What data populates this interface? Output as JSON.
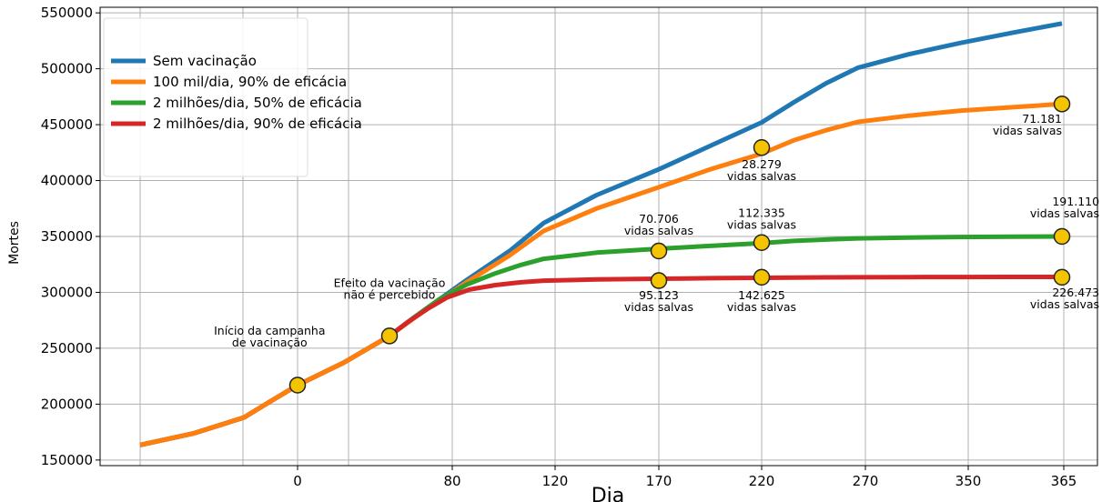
{
  "chart_data": {
    "type": "line",
    "title": "",
    "xlabel": "Dia",
    "ylabel": "Mortes",
    "ylim": [
      145000,
      555000
    ],
    "y_ticks": [
      150000,
      200000,
      250000,
      300000,
      350000,
      400000,
      450000,
      500000,
      550000
    ],
    "x_ticks": [
      "0",
      "80",
      "120",
      "170",
      "220",
      "270",
      "350",
      "365"
    ],
    "grid": true,
    "legend": "top-left",
    "series": [
      {
        "name": "Sem vacinação",
        "color": "#1f77b4",
        "points": [
          [
            -25,
            163500
          ],
          [
            -12,
            174000
          ],
          [
            0,
            188000
          ],
          [
            12,
            202000
          ],
          [
            25,
            217000
          ],
          [
            40,
            237000
          ],
          [
            55,
            261000
          ],
          [
            70,
            286000
          ],
          [
            85,
            311000
          ],
          [
            100,
            337000
          ],
          [
            115,
            362000
          ],
          [
            130,
            387000
          ],
          [
            145,
            410000
          ],
          [
            160,
            431000
          ],
          [
            175,
            452000
          ],
          [
            190,
            470000
          ],
          [
            205,
            487000
          ],
          [
            220,
            501000
          ],
          [
            235,
            513000
          ],
          [
            250,
            523000
          ],
          [
            265,
            532000
          ],
          [
            280,
            540500
          ]
        ]
      },
      {
        "name": "100 mil/dia, 90% de eficácia",
        "color": "#ff7f0e",
        "points": [
          [
            -25,
            163500
          ],
          [
            -12,
            174000
          ],
          [
            0,
            188000
          ],
          [
            12,
            202000
          ],
          [
            25,
            217000
          ],
          [
            40,
            237000
          ],
          [
            55,
            261000
          ],
          [
            70,
            285500
          ],
          [
            85,
            309000
          ],
          [
            100,
            333000
          ],
          [
            115,
            355000
          ],
          [
            130,
            375000
          ],
          [
            145,
            394000
          ],
          [
            160,
            410000
          ],
          [
            175,
            424000
          ],
          [
            190,
            436000
          ],
          [
            205,
            445000
          ],
          [
            220,
            452500
          ],
          [
            235,
            458000
          ],
          [
            250,
            462500
          ],
          [
            265,
            465500
          ],
          [
            280,
            468500
          ]
        ]
      },
      {
        "name": "2 milhões/dia, 50% de eficácia",
        "color": "#2ca02c",
        "points": [
          [
            -25,
            163500
          ],
          [
            -12,
            174000
          ],
          [
            0,
            188000
          ],
          [
            12,
            202000
          ],
          [
            25,
            217000
          ],
          [
            40,
            237000
          ],
          [
            55,
            261000
          ],
          [
            65,
            278000
          ],
          [
            75,
            294000
          ],
          [
            85,
            307000
          ],
          [
            95,
            317000
          ],
          [
            105,
            324500
          ],
          [
            115,
            330000
          ],
          [
            130,
            335500
          ],
          [
            145,
            339000
          ],
          [
            160,
            341500
          ],
          [
            175,
            344000
          ],
          [
            190,
            346000
          ],
          [
            205,
            347200
          ],
          [
            220,
            348300
          ],
          [
            235,
            349000
          ],
          [
            250,
            349500
          ],
          [
            265,
            349800
          ],
          [
            280,
            350000
          ]
        ]
      },
      {
        "name": "2 milhões/dia, 90% de eficácia",
        "color": "#d62728",
        "points": [
          [
            -25,
            163500
          ],
          [
            -12,
            174000
          ],
          [
            0,
            188000
          ],
          [
            12,
            202000
          ],
          [
            25,
            217000
          ],
          [
            40,
            237000
          ],
          [
            55,
            261000
          ],
          [
            62,
            273000
          ],
          [
            70,
            285000
          ],
          [
            78,
            295500
          ],
          [
            86,
            302500
          ],
          [
            95,
            306500
          ],
          [
            105,
            309000
          ],
          [
            115,
            310500
          ],
          [
            130,
            311500
          ],
          [
            145,
            312200
          ],
          [
            160,
            312700
          ],
          [
            175,
            313000
          ],
          [
            190,
            313200
          ],
          [
            205,
            313400
          ],
          [
            220,
            313500
          ],
          [
            235,
            313600
          ],
          [
            250,
            313700
          ],
          [
            265,
            313800
          ],
          [
            280,
            313800
          ]
        ]
      }
    ],
    "markers": [
      {
        "x": 25,
        "y": 217000
      },
      {
        "x": 55,
        "y": 261000
      },
      {
        "x": 145,
        "y": 337000
      },
      {
        "x": 145,
        "y": 310500
      },
      {
        "x": 175,
        "y": 429500
      },
      {
        "x": 175,
        "y": 344500
      },
      {
        "x": 175,
        "y": 313500
      },
      {
        "x": 280,
        "y": 468500
      },
      {
        "x": 280,
        "y": 350000
      },
      {
        "x": 280,
        "y": 313500
      }
    ],
    "annotations": [
      {
        "lines": [
          "Início da campanha",
          "de vacinação"
        ],
        "x": 12,
        "y": 262000,
        "anchor": "middle"
      },
      {
        "lines": [
          "Efeito da vacinação",
          "não é percebido"
        ],
        "x": 55,
        "y": 305000,
        "anchor": "middle"
      },
      {
        "lines": [
          "70.706",
          "vidas salvas"
        ],
        "x": 145,
        "y": 362000,
        "anchor": "middle"
      },
      {
        "lines": [
          "95.123",
          "vidas salvas"
        ],
        "x": 145,
        "y": 294000,
        "anchor": "middle"
      },
      {
        "lines": [
          "28.279",
          "vidas salvas"
        ],
        "x": 175,
        "y": 411000,
        "anchor": "middle"
      },
      {
        "lines": [
          "112.335",
          "vidas salvas"
        ],
        "x": 175,
        "y": 367500,
        "anchor": "middle"
      },
      {
        "lines": [
          "142.625",
          "vidas salvas"
        ],
        "x": 175,
        "y": 294000,
        "anchor": "middle"
      },
      {
        "lines": [
          "71.181",
          "vidas salvas"
        ],
        "x": 280,
        "y": 451500,
        "anchor": "end"
      },
      {
        "lines": [
          "191.110",
          "vidas salvas"
        ],
        "x": 291,
        "y": 377500,
        "anchor": "end"
      },
      {
        "lines": [
          "226.473",
          "vidas salvas"
        ],
        "x": 291,
        "y": 296500,
        "anchor": "end"
      }
    ]
  }
}
